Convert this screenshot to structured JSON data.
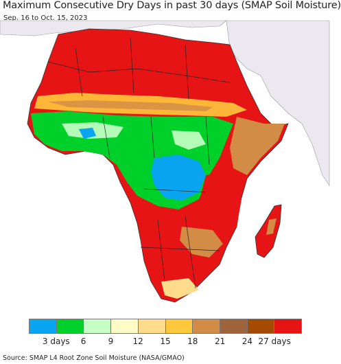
{
  "header": {
    "title": "Maximum Consecutive Dry Days in past 30 days (SMAP Soil Moisture)",
    "subtitle": "Sep. 16 to Oct. 15, 2023"
  },
  "legend": {
    "colors": [
      "#0aa5f0",
      "#00d12a",
      "#c6ffc6",
      "#fffcc8",
      "#ffdc8c",
      "#ffc83c",
      "#d28c46",
      "#a0643c",
      "#a54b00",
      "#e61414"
    ],
    "tick_labels": [
      "3 days",
      "6",
      "9",
      "12",
      "15",
      "18",
      "21",
      "24",
      "27 days"
    ]
  },
  "footer": {
    "source": "Source: SMAP L4 Root Zone Soil Moisture (NASA/GMAO)"
  },
  "map": {
    "land_color": "#e61414",
    "non_africa_color": "#ece8f0",
    "water_color": "#ffffff"
  }
}
